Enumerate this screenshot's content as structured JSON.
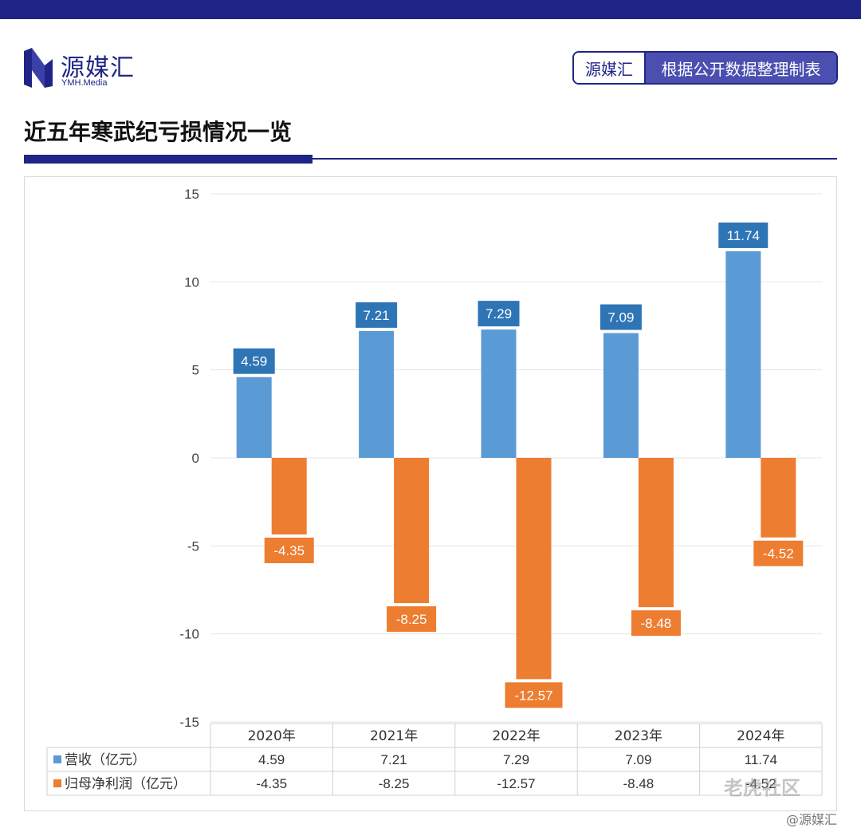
{
  "brand": {
    "name": "源媒汇",
    "sub": "YMH.Media",
    "primary_color": "#1f2586",
    "logo_icon": "ymh-logo-icon"
  },
  "source_tag": {
    "left": "源媒汇",
    "right": "根据公开数据整理制表"
  },
  "title": "近五年寒武纪亏损情况一览",
  "chart_data": {
    "type": "bar",
    "title": "",
    "categories": [
      "2020年",
      "2021年",
      "2022年",
      "2023年",
      "2024年"
    ],
    "series": [
      {
        "name": "营收（亿元）",
        "color": "#5b9bd5",
        "label_color": "#2e75b6",
        "values": [
          4.59,
          7.21,
          7.29,
          7.09,
          11.74
        ]
      },
      {
        "name": "归母净利润（亿元）",
        "color": "#ed7d31",
        "label_color": "#ed7d31",
        "values": [
          -4.35,
          -8.25,
          -12.57,
          -8.48,
          -4.52
        ]
      }
    ],
    "value_labels": [
      [
        "4.59",
        "7.21",
        "7.29",
        "7.09",
        "11.74"
      ],
      [
        "-4.35",
        "-8.25",
        "-12.57",
        "-8.48",
        "-4.52"
      ]
    ],
    "table_values": [
      [
        "4.59",
        "7.21",
        "7.29",
        "7.09",
        "11.74"
      ],
      [
        "-4.35",
        "-8.25",
        "-12.57",
        "-8.48",
        "-4.52"
      ]
    ],
    "y_ticks": [
      "15",
      "10",
      "5",
      "0",
      "-5",
      "-10",
      "-15"
    ],
    "ylim": [
      -15,
      15
    ],
    "grid": true,
    "legend": "data-table"
  },
  "watermark": {
    "community": "老虎社区",
    "handle": "@源媒汇"
  }
}
